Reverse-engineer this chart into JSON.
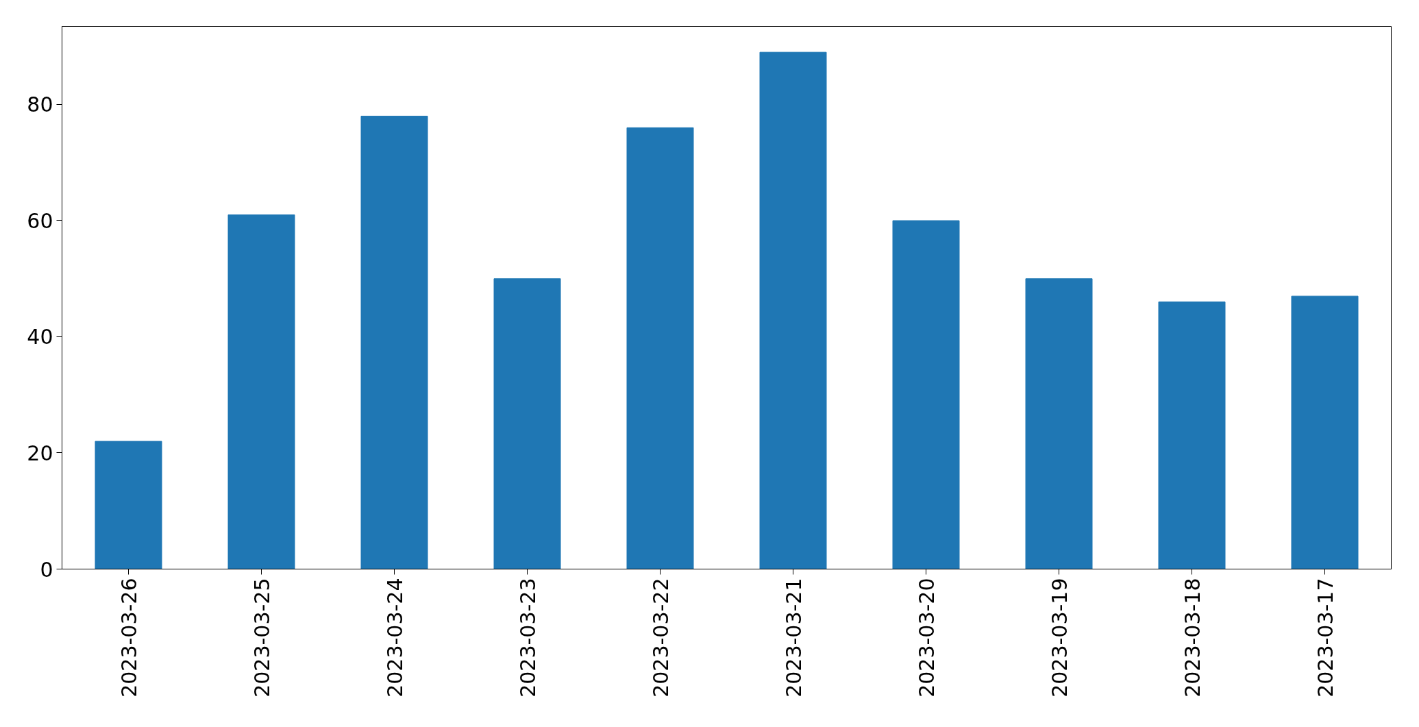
{
  "chart_data": {
    "type": "bar",
    "categories": [
      "2023-03-26",
      "2023-03-25",
      "2023-03-24",
      "2023-03-23",
      "2023-03-22",
      "2023-03-21",
      "2023-03-20",
      "2023-03-19",
      "2023-03-18",
      "2023-03-17"
    ],
    "values": [
      22,
      61,
      78,
      50,
      76,
      89,
      60,
      50,
      46,
      47
    ],
    "color": "#1f77b4",
    "ylim": [
      0,
      93.45
    ],
    "yticks": [
      0,
      20,
      40,
      60,
      80
    ],
    "grid": false
  }
}
